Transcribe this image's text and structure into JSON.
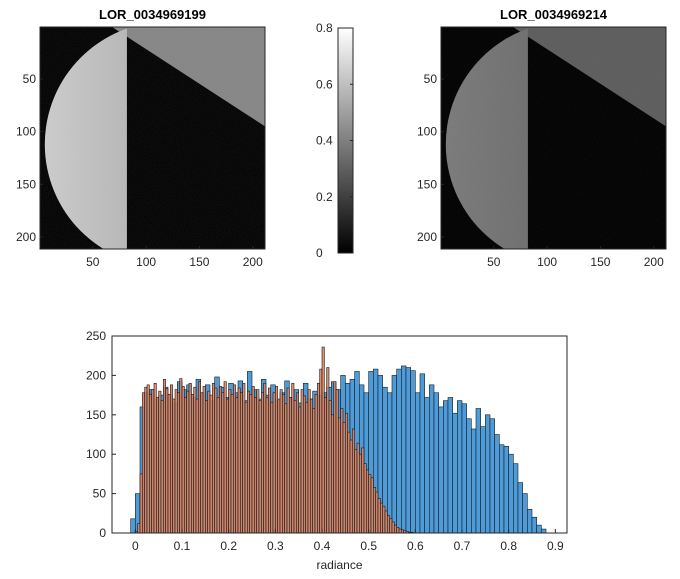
{
  "chart_data": [
    {
      "type": "image",
      "title": "LOR_0034969199",
      "xticks": [
        "50",
        "100",
        "150",
        "200"
      ],
      "yticks": [
        "50",
        "100",
        "150",
        "200"
      ],
      "xlim": [
        0.5,
        211.5
      ],
      "ylim": [
        0.5,
        211.5
      ],
      "disk": {
        "cx": 120,
        "cy": 112,
        "r": 115,
        "terminator_x": 82,
        "brightness": 0.66,
        "limb_brightness": 0.8
      },
      "sky_wedge": {
        "brightness": 0.52
      },
      "colormap": "gray"
    },
    {
      "type": "colorbar",
      "ticks": [
        "0",
        "0.2",
        "0.4",
        "0.6",
        "0.8"
      ],
      "tick_values": [
        0,
        0.2,
        0.4,
        0.6,
        0.8
      ],
      "clim": [
        0,
        0.8
      ],
      "colormap": "gray"
    },
    {
      "type": "image",
      "title": "LOR_0034969214",
      "xticks": [
        "50",
        "100",
        "150",
        "200"
      ],
      "yticks": [
        "50",
        "100",
        "150",
        "200"
      ],
      "xlim": [
        0.5,
        211.5
      ],
      "ylim": [
        0.5,
        211.5
      ],
      "disk": {
        "cx": 120,
        "cy": 112,
        "r": 115,
        "terminator_x": 82,
        "brightness": 0.4,
        "limb_brightness": 0.48
      },
      "sky_wedge": {
        "brightness": 0.36
      },
      "colormap": "gray"
    },
    {
      "type": "bar",
      "title": "",
      "xlabel": "radiance",
      "ylabel": "",
      "xlim": [
        -0.05,
        0.925
      ],
      "ylim": [
        0,
        250
      ],
      "xticks": [
        "0",
        "0.1",
        "0.2",
        "0.3",
        "0.4",
        "0.5",
        "0.6",
        "0.7",
        "0.8",
        "0.9"
      ],
      "xtick_values": [
        0,
        0.1,
        0.2,
        0.3,
        0.4,
        0.5,
        0.6,
        0.7,
        0.8,
        0.9
      ],
      "yticks": [
        "0",
        "50",
        "100",
        "150",
        "200",
        "250"
      ],
      "ytick_values": [
        0,
        50,
        100,
        150,
        200,
        250
      ],
      "series": [
        {
          "color": "#4d9cd9",
          "bin_width": 0.01,
          "x": [
            -0.005,
            0.005,
            0.015,
            0.025,
            0.035,
            0.045,
            0.055,
            0.065,
            0.075,
            0.085,
            0.095,
            0.105,
            0.115,
            0.125,
            0.135,
            0.145,
            0.155,
            0.165,
            0.175,
            0.185,
            0.195,
            0.205,
            0.215,
            0.225,
            0.235,
            0.245,
            0.255,
            0.265,
            0.275,
            0.285,
            0.295,
            0.305,
            0.315,
            0.325,
            0.335,
            0.345,
            0.355,
            0.365,
            0.375,
            0.385,
            0.395,
            0.405,
            0.415,
            0.425,
            0.435,
            0.445,
            0.455,
            0.465,
            0.475,
            0.485,
            0.495,
            0.505,
            0.515,
            0.525,
            0.535,
            0.545,
            0.555,
            0.565,
            0.575,
            0.585,
            0.595,
            0.605,
            0.615,
            0.625,
            0.635,
            0.645,
            0.655,
            0.665,
            0.675,
            0.685,
            0.695,
            0.705,
            0.715,
            0.725,
            0.735,
            0.745,
            0.755,
            0.765,
            0.775,
            0.785,
            0.795,
            0.805,
            0.815,
            0.825,
            0.835,
            0.845,
            0.855,
            0.865,
            0.875
          ],
          "values": [
            18,
            50,
            160,
            178,
            182,
            170,
            175,
            185,
            176,
            165,
            192,
            182,
            188,
            172,
            195,
            178,
            188,
            168,
            198,
            185,
            172,
            190,
            178,
            193,
            168,
            205,
            182,
            170,
            195,
            175,
            188,
            168,
            178,
            193,
            172,
            182,
            165,
            190,
            170,
            180,
            175,
            178,
            185,
            192,
            182,
            200,
            190,
            195,
            205,
            188,
            178,
            205,
            208,
            200,
            185,
            178,
            200,
            208,
            212,
            210,
            206,
            178,
            202,
            172,
            188,
            178,
            160,
            168,
            172,
            152,
            168,
            164,
            145,
            132,
            158,
            135,
            150,
            145,
            125,
            112,
            110,
            100,
            88,
            64,
            50,
            30,
            20,
            10,
            5
          ]
        },
        {
          "color": "#d9825f",
          "bin_width": 0.005,
          "x": [
            0.0025,
            0.0075,
            0.0125,
            0.0175,
            0.0225,
            0.0275,
            0.0325,
            0.0375,
            0.0425,
            0.0475,
            0.0525,
            0.0575,
            0.0625,
            0.0675,
            0.0725,
            0.0775,
            0.0825,
            0.0875,
            0.0925,
            0.0975,
            0.1025,
            0.1075,
            0.1125,
            0.1175,
            0.1225,
            0.1275,
            0.1325,
            0.1375,
            0.1425,
            0.1475,
            0.1525,
            0.1575,
            0.1625,
            0.1675,
            0.1725,
            0.1775,
            0.1825,
            0.1875,
            0.1925,
            0.1975,
            0.2025,
            0.2075,
            0.2125,
            0.2175,
            0.2225,
            0.2275,
            0.2325,
            0.2375,
            0.2425,
            0.2475,
            0.2525,
            0.2575,
            0.2625,
            0.2675,
            0.2725,
            0.2775,
            0.2825,
            0.2875,
            0.2925,
            0.2975,
            0.3025,
            0.3075,
            0.3125,
            0.3175,
            0.3225,
            0.3275,
            0.3325,
            0.3375,
            0.3425,
            0.3475,
            0.3525,
            0.3575,
            0.3625,
            0.3675,
            0.3725,
            0.3775,
            0.3825,
            0.3875,
            0.3925,
            0.3975,
            0.4025,
            0.4075,
            0.4125,
            0.4175,
            0.4225,
            0.4275,
            0.4325,
            0.4375,
            0.4425,
            0.4475,
            0.4525,
            0.4575,
            0.4625,
            0.4675,
            0.4725,
            0.4775,
            0.4825,
            0.4875,
            0.4925,
            0.4975,
            0.5025,
            0.5075,
            0.5125,
            0.5175,
            0.5225,
            0.5275,
            0.5325,
            0.5375,
            0.5425,
            0.5475,
            0.5525,
            0.5575,
            0.5625,
            0.5675,
            0.5725,
            0.5775,
            0.5825,
            0.5875,
            0.5925,
            0.5975,
            0.6025
          ],
          "values": [
            2,
            12,
            75,
            178,
            185,
            188,
            176,
            182,
            190,
            172,
            180,
            168,
            195,
            183,
            176,
            188,
            170,
            182,
            178,
            196,
            186,
            172,
            180,
            190,
            176,
            185,
            170,
            192,
            178,
            186,
            168,
            180,
            175,
            190,
            184,
            172,
            186,
            178,
            192,
            170,
            182,
            176,
            188,
            172,
            184,
            178,
            190,
            166,
            180,
            176,
            186,
            172,
            182,
            168,
            178,
            190,
            172,
            184,
            166,
            178,
            186,
            170,
            182,
            176,
            164,
            184,
            172,
            190,
            168,
            178,
            160,
            182,
            174,
            166,
            182,
            170,
            158,
            176,
            190,
            208,
            236,
            172,
            210,
            168,
            150,
            192,
            182,
            146,
            158,
            140,
            152,
            128,
            118,
            132,
            106,
            114,
            100,
            108,
            88,
            80,
            74,
            70,
            58,
            52,
            44,
            38,
            34,
            28,
            22,
            18,
            14,
            10,
            7,
            5,
            4,
            3,
            2,
            1,
            1,
            0,
            0
          ]
        }
      ]
    }
  ]
}
